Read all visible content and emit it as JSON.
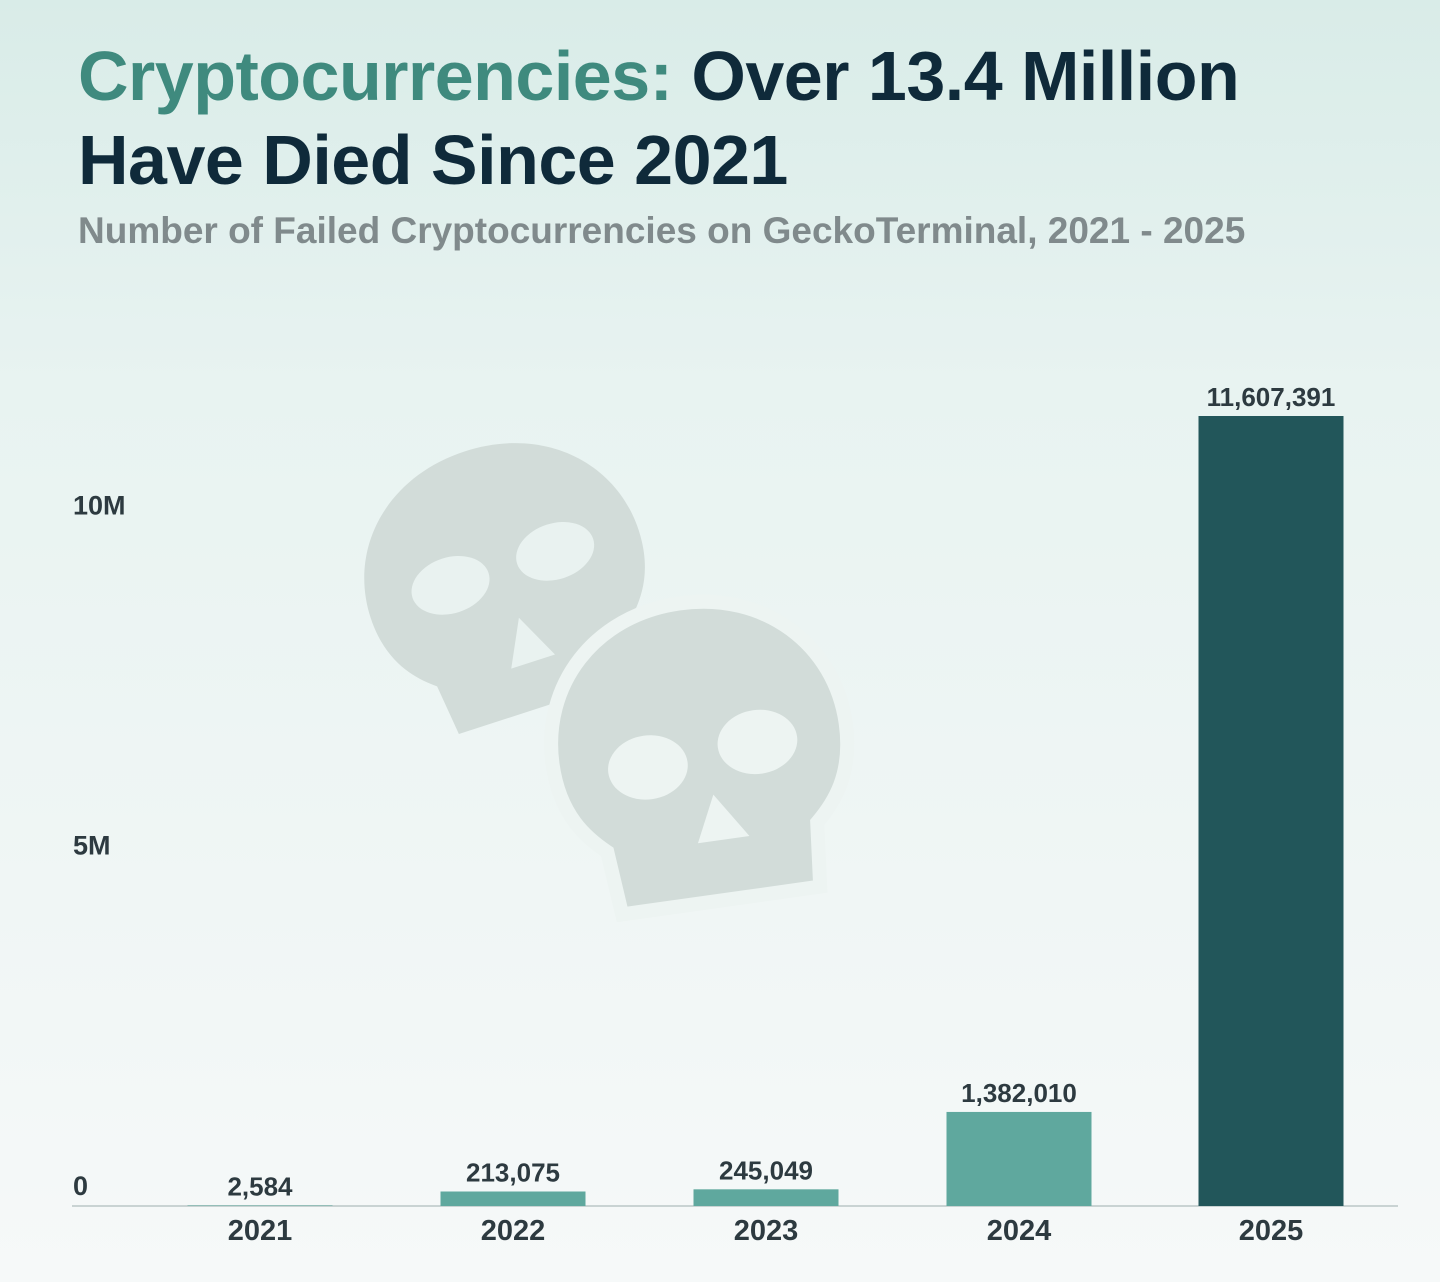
{
  "header": {
    "title_accent": "Cryptocurrencies:",
    "title_rest": " Over 13.4 Million Have Died Since 2021",
    "subtitle": "Number of Failed Cryptocurrencies on GeckoTerminal, 2021 - 2025"
  },
  "colors": {
    "accent": "#3f8a7e",
    "bar_light": "#5fa89e",
    "bar_dark": "#22565a",
    "watermark": "#d2dcd9"
  },
  "decoration": {
    "watermark_icon": "skull-icon"
  },
  "chart_data": {
    "type": "bar",
    "categories": [
      "2021",
      "2022",
      "2023",
      "2024",
      "2025"
    ],
    "values": [
      2584,
      213075,
      245049,
      1382010,
      11607391
    ],
    "value_labels": [
      "2,584",
      "213,075",
      "245,049",
      "1,382,010",
      "11,607,391"
    ],
    "bar_colors": [
      "#5fa89e",
      "#5fa89e",
      "#5fa89e",
      "#5fa89e",
      "#22565a"
    ],
    "yticks": [
      {
        "value": 0,
        "label": "0"
      },
      {
        "value": 5000000,
        "label": "5M"
      },
      {
        "value": 10000000,
        "label": "10M"
      }
    ],
    "ylim": [
      0,
      11607391
    ],
    "xlabel": "",
    "ylabel": "",
    "grid": false,
    "legend": "none"
  }
}
